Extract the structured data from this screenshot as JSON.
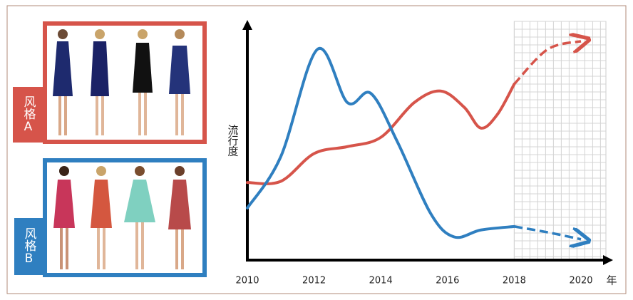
{
  "chart_data": {
    "type": "line",
    "ylabel": "流行度",
    "xlabel": "年",
    "xlim": [
      2010,
      2020
    ],
    "ylim": [
      0,
      100
    ],
    "xticks": [
      2010,
      2012,
      2014,
      2016,
      2018,
      2020
    ],
    "forecast_from": 2018,
    "series": [
      {
        "name": "风格A",
        "color": "#d6544a",
        "x": [
          2010,
          2011,
          2012,
          2013,
          2014,
          2015,
          2015.8,
          2016.5,
          2017,
          2017.5,
          2018,
          2019,
          2020
        ],
        "values": [
          33.5,
          34,
          46,
          49,
          53,
          68,
          73,
          66,
          57,
          63,
          76,
          91,
          94.5
        ]
      },
      {
        "name": "风格B",
        "color": "#2f7fc0",
        "x": [
          2010,
          2011,
          2012.1,
          2013,
          2013.7,
          2014.5,
          2015.5,
          2016.2,
          2017,
          2018,
          2019,
          2020
        ],
        "values": [
          22.5,
          44.6,
          91,
          68,
          72,
          51,
          20,
          10,
          13,
          14.5,
          12,
          9
        ]
      }
    ]
  }
}
